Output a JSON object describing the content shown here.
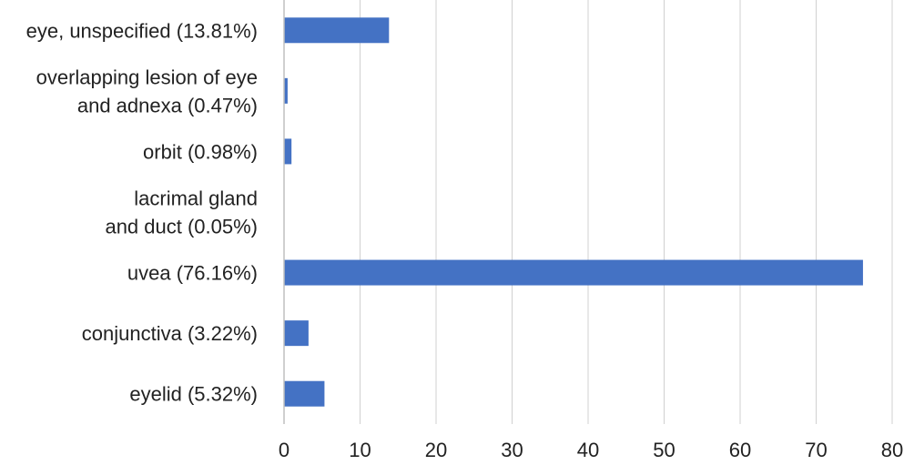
{
  "chart_data": {
    "type": "bar",
    "orientation": "horizontal",
    "categories": [
      [
        "eye, unspecified (13.81%)"
      ],
      [
        "overlapping lesion of eye",
        "and adnexa (0.47%)"
      ],
      [
        "orbit (0.98%)"
      ],
      [
        "lacrimal gland",
        "and duct (0.05%)"
      ],
      [
        "uvea (76.16%)"
      ],
      [
        "conjunctiva (3.22%)"
      ],
      [
        "eyelid (5.32%)"
      ]
    ],
    "values": [
      13.81,
      0.47,
      0.98,
      0.05,
      76.16,
      3.22,
      5.32
    ],
    "bar_color": "#4472c4",
    "xlim": [
      0,
      80
    ],
    "xticks": [
      "0",
      "10",
      "20",
      "30",
      "40",
      "50",
      "60",
      "70",
      "80"
    ],
    "grid": true,
    "legend": "none"
  }
}
